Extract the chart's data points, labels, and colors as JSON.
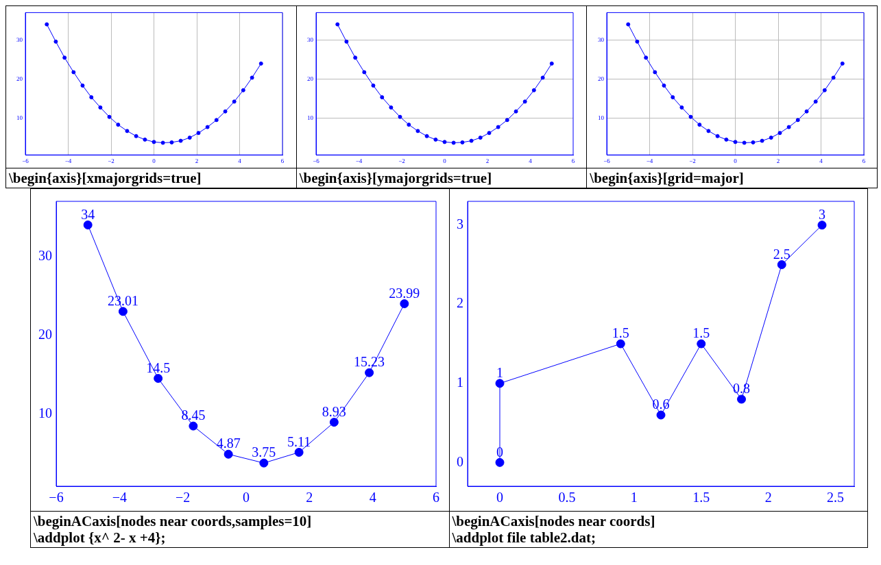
{
  "chart_data": [
    {
      "type": "line",
      "x": [
        -5,
        -4.58,
        -4.17,
        -3.75,
        -3.33,
        -2.92,
        -2.5,
        -2.08,
        -1.67,
        -1.25,
        -0.83,
        -0.42,
        0,
        0.42,
        0.83,
        1.25,
        1.67,
        2.08,
        2.5,
        2.92,
        3.33,
        3.75,
        4.17,
        4.58,
        5
      ],
      "series": [
        {
          "color": "#0000ff",
          "values": [
            34,
            29.6,
            25.5,
            21.8,
            18.4,
            15.4,
            12.8,
            10.4,
            8.4,
            6.8,
            5.5,
            4.6,
            4,
            3.8,
            3.9,
            4.3,
            5.1,
            6.3,
            7.8,
            9.6,
            11.8,
            14.3,
            17.2,
            20.4,
            24
          ]
        }
      ],
      "xlim": [
        -6,
        6
      ],
      "xticks": [
        {
          "value": -6,
          "label": "−6"
        },
        {
          "value": -4,
          "label": "−4"
        },
        {
          "value": -2,
          "label": "−2"
        },
        0,
        2,
        4,
        6
      ],
      "ylim": [
        0.7,
        37
      ],
      "yticks": [
        10,
        20,
        30
      ],
      "grid": "x",
      "marker": "circle",
      "annotations": [
        "\\begin{axis}[xmajorgrids=true]"
      ]
    },
    {
      "type": "line",
      "x": [
        -5,
        -4.58,
        -4.17,
        -3.75,
        -3.33,
        -2.92,
        -2.5,
        -2.08,
        -1.67,
        -1.25,
        -0.83,
        -0.42,
        0,
        0.42,
        0.83,
        1.25,
        1.67,
        2.08,
        2.5,
        2.92,
        3.33,
        3.75,
        4.17,
        4.58,
        5
      ],
      "series": [
        {
          "color": "#0000ff",
          "values": [
            34,
            29.6,
            25.5,
            21.8,
            18.4,
            15.4,
            12.8,
            10.4,
            8.4,
            6.8,
            5.5,
            4.6,
            4,
            3.8,
            3.9,
            4.3,
            5.1,
            6.3,
            7.8,
            9.6,
            11.8,
            14.3,
            17.2,
            20.4,
            24
          ]
        }
      ],
      "xlim": [
        -6,
        6
      ],
      "xticks": [
        {
          "value": -6,
          "label": "−6"
        },
        {
          "value": -4,
          "label": "−4"
        },
        {
          "value": -2,
          "label": "−2"
        },
        0,
        2,
        4,
        6
      ],
      "ylim": [
        0.7,
        37
      ],
      "yticks": [
        10,
        20,
        30
      ],
      "grid": "y",
      "marker": "circle",
      "annotations": [
        "\\begin{axis}[ymajorgrids=true]"
      ]
    },
    {
      "type": "line",
      "x": [
        -5,
        -4.58,
        -4.17,
        -3.75,
        -3.33,
        -2.92,
        -2.5,
        -2.08,
        -1.67,
        -1.25,
        -0.83,
        -0.42,
        0,
        0.42,
        0.83,
        1.25,
        1.67,
        2.08,
        2.5,
        2.92,
        3.33,
        3.75,
        4.17,
        4.58,
        5
      ],
      "series": [
        {
          "color": "#0000ff",
          "values": [
            34,
            29.6,
            25.5,
            21.8,
            18.4,
            15.4,
            12.8,
            10.4,
            8.4,
            6.8,
            5.5,
            4.6,
            4,
            3.8,
            3.9,
            4.3,
            5.1,
            6.3,
            7.8,
            9.6,
            11.8,
            14.3,
            17.2,
            20.4,
            24
          ]
        }
      ],
      "xlim": [
        -6,
        6
      ],
      "xticks": [
        {
          "value": -6,
          "label": "−6"
        },
        {
          "value": -4,
          "label": "−4"
        },
        {
          "value": -2,
          "label": "−2"
        },
        0,
        2,
        4,
        6
      ],
      "ylim": [
        0.7,
        37
      ],
      "yticks": [
        10,
        20,
        30
      ],
      "grid": true,
      "marker": "circle",
      "annotations": [
        "\\begin{axis}[grid=major]"
      ]
    },
    {
      "type": "line",
      "x": [
        -5,
        -3.89,
        -2.78,
        -1.67,
        -0.56,
        0.56,
        1.67,
        2.78,
        3.89,
        5
      ],
      "series": [
        {
          "color": "#0000ff",
          "values": [
            34,
            23.01,
            14.5,
            8.45,
            4.87,
            3.75,
            5.11,
            8.93,
            15.23,
            23.99
          ]
        }
      ],
      "data_labels": true,
      "xlim": [
        -6,
        6
      ],
      "xticks": [
        {
          "value": -6,
          "label": "−6"
        },
        {
          "value": -4,
          "label": "−4"
        },
        {
          "value": -2,
          "label": "−2"
        },
        0,
        2,
        4,
        6
      ],
      "ylim": [
        0.8,
        37
      ],
      "yticks": [
        10,
        20,
        30
      ],
      "marker": "circle",
      "annotations": [
        "\\beginACaxis[nodes near coords,samples=10]",
        "\\addplot {x^ 2- x +4};"
      ]
    },
    {
      "type": "line",
      "x": [
        0,
        0,
        0.9,
        1.2,
        1.5,
        1.8,
        2.1,
        2.4
      ],
      "series": [
        {
          "color": "#0000ff",
          "values": [
            0,
            1,
            1.5,
            0.6,
            1.5,
            0.8,
            2.5,
            3
          ]
        }
      ],
      "data_labels": true,
      "xlim": [
        -0.24,
        2.64
      ],
      "xticks": [
        0,
        0.5,
        1,
        1.5,
        2,
        2.5
      ],
      "ylim": [
        -0.3,
        3.3
      ],
      "yticks": [
        0,
        1,
        2,
        3
      ],
      "marker": "circle",
      "annotations": [
        "\\beginACaxis[nodes near coords]",
        "\\addplot file table2.dat;"
      ]
    }
  ]
}
